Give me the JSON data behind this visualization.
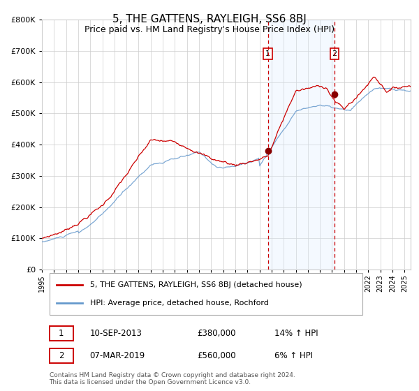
{
  "title": "5, THE GATTENS, RAYLEIGH, SS6 8BJ",
  "subtitle": "Price paid vs. HM Land Registry's House Price Index (HPI)",
  "red_line_color": "#cc0000",
  "blue_line_color": "#6699cc",
  "marker_color": "#880000",
  "shade_color": "#ddeeff",
  "dashed_line_color": "#cc0000",
  "grid_color": "#cccccc",
  "background_color": "#ffffff",
  "title_fontsize": 11,
  "subtitle_fontsize": 9,
  "legend_label_red": "5, THE GATTENS, RAYLEIGH, SS6 8BJ (detached house)",
  "legend_label_blue": "HPI: Average price, detached house, Rochford",
  "annotation1_date": "10-SEP-2013",
  "annotation1_price": "£380,000",
  "annotation1_hpi": "14% ↑ HPI",
  "annotation2_date": "07-MAR-2019",
  "annotation2_price": "£560,000",
  "annotation2_hpi": "6% ↑ HPI",
  "footer": "Contains HM Land Registry data © Crown copyright and database right 2024.\nThis data is licensed under the Open Government Licence v3.0.",
  "marker1_x": 2013.7,
  "marker1_y": 380000,
  "marker2_x": 2019.2,
  "marker2_y": 560000,
  "vline1_x": 2013.7,
  "vline2_x": 2019.2,
  "shade_x1": 2013.7,
  "shade_x2": 2019.2,
  "y_ticks": [
    0,
    100000,
    200000,
    300000,
    400000,
    500000,
    600000,
    700000,
    800000
  ],
  "xlim_left": 1995.0,
  "xlim_right": 2025.5,
  "ylim_bottom": 0,
  "ylim_top": 800000
}
